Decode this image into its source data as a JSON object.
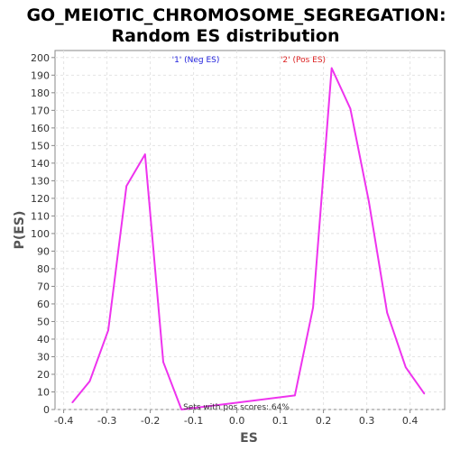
{
  "chart_data": {
    "type": "line",
    "title_line1": "GO_MEIOTIC_CHROMOSOME_SEGREGATION:",
    "title_line2": "Random ES distribution",
    "xlabel": "ES",
    "ylabel": "P(ES)",
    "xlim": [
      -0.42,
      0.48
    ],
    "ylim": [
      0,
      204
    ],
    "x_ticks": [
      -0.4,
      -0.3,
      -0.2,
      -0.1,
      0.0,
      0.1,
      0.2,
      0.3,
      0.4
    ],
    "x_tick_labels": [
      "-0.4",
      "-0.3",
      "-0.2",
      "-0.1",
      "0.0",
      "0.1",
      "0.2",
      "0.3",
      "0.4"
    ],
    "y_ticks": [
      0,
      10,
      20,
      30,
      40,
      50,
      60,
      70,
      80,
      90,
      100,
      110,
      120,
      130,
      140,
      150,
      160,
      170,
      180,
      190,
      200
    ],
    "grid": true,
    "series": [
      {
        "color": "#ee33ee",
        "x": [
          -0.38,
          -0.34,
          -0.297,
          -0.255,
          -0.212,
          -0.17,
          -0.128,
          0.134,
          0.176,
          0.219,
          0.262,
          0.305,
          0.347,
          0.39,
          0.433
        ],
        "y": [
          4,
          16,
          45,
          127,
          145,
          27,
          0,
          8,
          58,
          194,
          171,
          118,
          55,
          24,
          9
        ]
      }
    ],
    "annotations": {
      "neg": {
        "text": "'1' (Neg ES)",
        "color": "#2222dd"
      },
      "pos": {
        "text": "'2' (Pos ES)",
        "color": "#dd2222"
      },
      "pos_scores": "Sets with pos scores: 64%"
    }
  }
}
